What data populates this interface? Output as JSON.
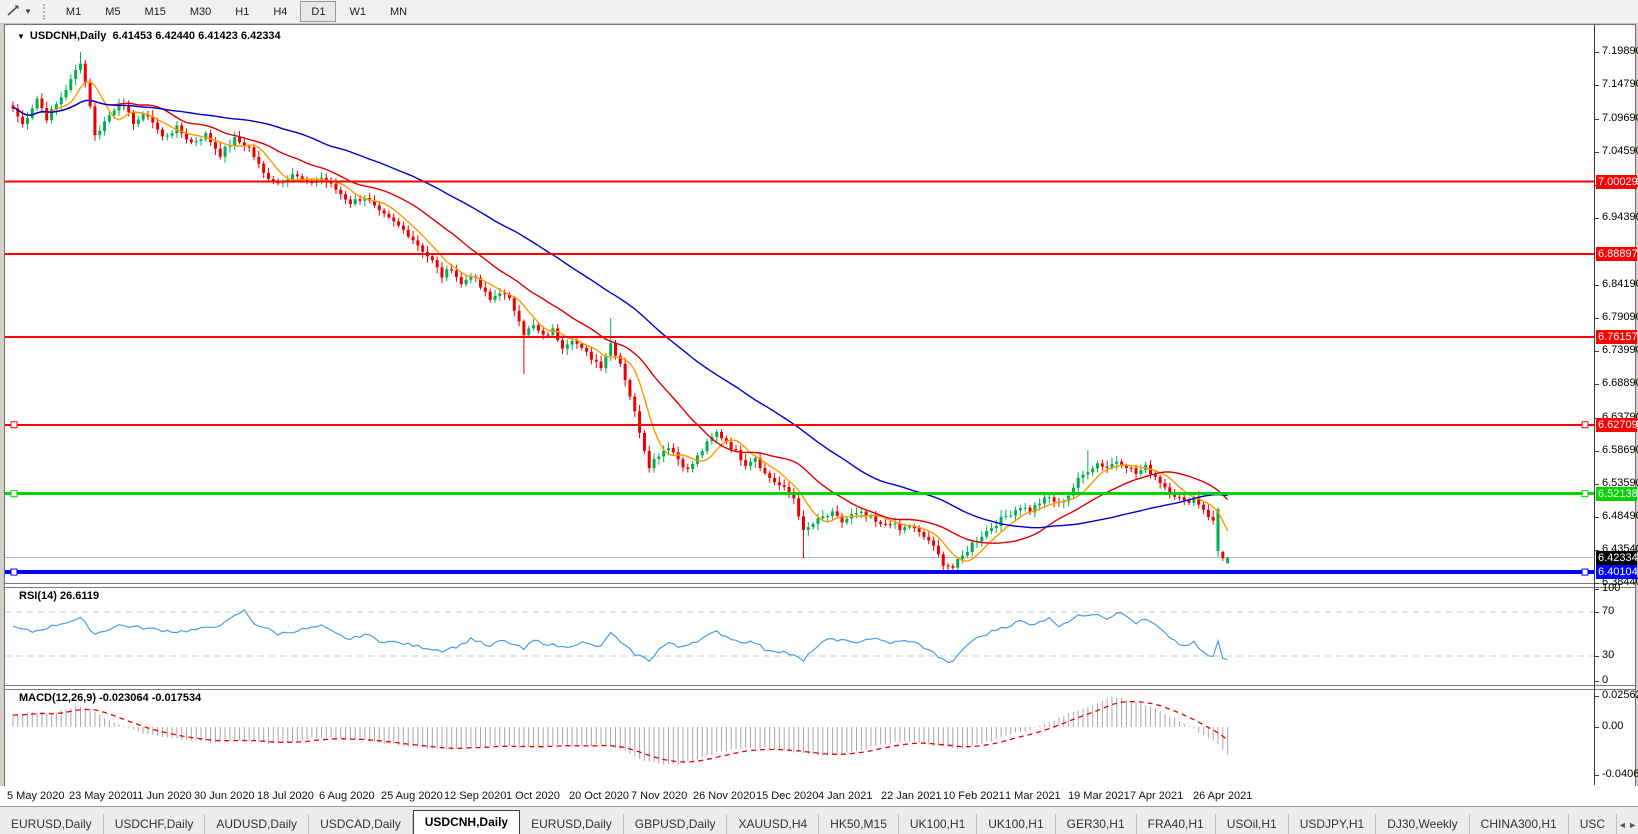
{
  "toolbar": {
    "tool_icon": "trendline-tool-icon",
    "timeframes": [
      "M1",
      "M5",
      "M15",
      "M30",
      "H1",
      "H4",
      "D1",
      "W1",
      "MN"
    ],
    "active_timeframe": "D1"
  },
  "chart": {
    "title": {
      "caret": "▼",
      "symbol": "USDCNH,Daily",
      "ohlc": "6.41453 6.42440 6.41423 6.42334"
    },
    "price_axis_ticks": [
      "7.19890",
      "7.14790",
      "7.09690",
      "7.04590",
      "6.99490",
      "6.94390",
      "6.84190",
      "6.79090",
      "6.73990",
      "6.68890",
      "6.63790",
      "6.58690",
      "6.53590",
      "6.48490",
      "6.43540",
      "6.38440"
    ],
    "date_axis": [
      "5 May 2020",
      "23 May 2020",
      "11 Jun 2020",
      "30 Jun 2020",
      "18 Jul 2020",
      "6 Aug 2020",
      "25 Aug 2020",
      "12 Sep 2020",
      "1 Oct 2020",
      "20 Oct 2020",
      "7 Nov 2020",
      "26 Nov 2020",
      "15 Dec 2020",
      "4 Jan 2021",
      "22 Jan 2021",
      "10 Feb 2021",
      "1 Mar 2021",
      "19 Mar 2021",
      "7 Apr 2021",
      "26 Apr 2021"
    ]
  },
  "indicators": {
    "rsi": {
      "name": "RSI(14)",
      "value": "26.6119",
      "axis": [
        "100",
        "70",
        "30",
        "0"
      ],
      "levels": [
        70,
        30
      ],
      "color": "#4a9ce8"
    },
    "macd": {
      "name": "MACD(12,26,9)",
      "values": "-0.023064 -0.017534",
      "axis": [
        "0.025623",
        "0.00",
        "-0.040687"
      ],
      "bar_color": "#a8a8a8",
      "signal_color": "#ee0000"
    }
  },
  "tabs": {
    "items": [
      "EURUSD,Daily",
      "USDCHF,Daily",
      "AUDUSD,Daily",
      "USDCAD,Daily",
      "USDCNH,Daily",
      "EURUSD,Daily",
      "GBPUSD,Daily",
      "XAUUSD,H4",
      "HK50,M15",
      "UK100,H1",
      "UK100,H1",
      "GER30,H1",
      "FRA40,H1",
      "USOil,H1",
      "USDJPY,H1",
      "DJ30,Weekly",
      "CHINA300,H1",
      "USC"
    ],
    "active_index": 4,
    "scroll_left": "◄",
    "scroll_right": "►"
  },
  "chart_data": {
    "type": "candlestick",
    "symbol": "USDCNH",
    "period": "Daily",
    "last_bar_ohlc": {
      "open": 6.41453,
      "high": 6.4244,
      "low": 6.41423,
      "close": 6.42334
    },
    "price_range_top": 7.2404,
    "price_range_bottom": 6.3843,
    "days": 253,
    "up_color": "#00b050",
    "down_color": "#ee0000",
    "close_anchors": [
      [
        0,
        7.112
      ],
      [
        2,
        7.088
      ],
      [
        5,
        7.128
      ],
      [
        7,
        7.098
      ],
      [
        9,
        7.118
      ],
      [
        12,
        7.155
      ],
      [
        14,
        7.185
      ],
      [
        16,
        7.118
      ],
      [
        17,
        7.07
      ],
      [
        19,
        7.092
      ],
      [
        22,
        7.122
      ],
      [
        25,
        7.092
      ],
      [
        28,
        7.103
      ],
      [
        31,
        7.068
      ],
      [
        34,
        7.082
      ],
      [
        37,
        7.06
      ],
      [
        40,
        7.072
      ],
      [
        43,
        7.042
      ],
      [
        46,
        7.065
      ],
      [
        49,
        7.052
      ],
      [
        52,
        7.012
      ],
      [
        55,
        6.998
      ],
      [
        58,
        7.012
      ],
      [
        61,
        6.996
      ],
      [
        64,
        7.006
      ],
      [
        67,
        6.988
      ],
      [
        70,
        6.968
      ],
      [
        73,
        6.977
      ],
      [
        76,
        6.952
      ],
      [
        79,
        6.937
      ],
      [
        82,
        6.92
      ],
      [
        85,
        6.895
      ],
      [
        87,
        6.878
      ],
      [
        89,
        6.855
      ],
      [
        91,
        6.868
      ],
      [
        93,
        6.842
      ],
      [
        95,
        6.858
      ],
      [
        97,
        6.838
      ],
      [
        99,
        6.818
      ],
      [
        101,
        6.832
      ],
      [
        103,
        6.818
      ],
      [
        105,
        6.79
      ],
      [
        106,
        6.768
      ],
      [
        108,
        6.778
      ],
      [
        110,
        6.762
      ],
      [
        112,
        6.772
      ],
      [
        114,
        6.748
      ],
      [
        116,
        6.76
      ],
      [
        118,
        6.742
      ],
      [
        120,
        6.73
      ],
      [
        122,
        6.718
      ],
      [
        124,
        6.752
      ],
      [
        126,
        6.722
      ],
      [
        127,
        6.698
      ],
      [
        128,
        6.672
      ],
      [
        129,
        6.645
      ],
      [
        130,
        6.618
      ],
      [
        131,
        6.59
      ],
      [
        132,
        6.565
      ],
      [
        134,
        6.582
      ],
      [
        136,
        6.595
      ],
      [
        138,
        6.575
      ],
      [
        140,
        6.557
      ],
      [
        142,
        6.578
      ],
      [
        144,
        6.598
      ],
      [
        146,
        6.615
      ],
      [
        148,
        6.602
      ],
      [
        150,
        6.585
      ],
      [
        152,
        6.568
      ],
      [
        154,
        6.578
      ],
      [
        156,
        6.552
      ],
      [
        158,
        6.54
      ],
      [
        160,
        6.528
      ],
      [
        162,
        6.515
      ],
      [
        163,
        6.49
      ],
      [
        164,
        6.462
      ],
      [
        166,
        6.475
      ],
      [
        168,
        6.485
      ],
      [
        170,
        6.49
      ],
      [
        172,
        6.478
      ],
      [
        174,
        6.488
      ],
      [
        176,
        6.49
      ],
      [
        178,
        6.482
      ],
      [
        180,
        6.472
      ],
      [
        182,
        6.478
      ],
      [
        184,
        6.465
      ],
      [
        186,
        6.472
      ],
      [
        188,
        6.46
      ],
      [
        190,
        6.45
      ],
      [
        191,
        6.438
      ],
      [
        193,
        6.415
      ],
      [
        195,
        6.408
      ],
      [
        197,
        6.425
      ],
      [
        199,
        6.445
      ],
      [
        201,
        6.458
      ],
      [
        203,
        6.47
      ],
      [
        205,
        6.482
      ],
      [
        207,
        6.492
      ],
      [
        209,
        6.502
      ],
      [
        211,
        6.495
      ],
      [
        213,
        6.508
      ],
      [
        215,
        6.515
      ],
      [
        217,
        6.505
      ],
      [
        219,
        6.52
      ],
      [
        221,
        6.542
      ],
      [
        223,
        6.558
      ],
      [
        225,
        6.568
      ],
      [
        227,
        6.562
      ],
      [
        229,
        6.572
      ],
      [
        231,
        6.565
      ],
      [
        233,
        6.552
      ],
      [
        235,
        6.562
      ],
      [
        237,
        6.548
      ],
      [
        239,
        6.532
      ],
      [
        241,
        6.52
      ],
      [
        243,
        6.508
      ],
      [
        245,
        6.515
      ],
      [
        247,
        6.498
      ],
      [
        249,
        6.478
      ],
      [
        250,
        6.4975
      ],
      [
        251,
        6.4225
      ],
      [
        252,
        6.42334
      ]
    ],
    "specials": [
      {
        "i": 14,
        "h": 7.1989
      },
      {
        "i": 106,
        "l": 6.705
      },
      {
        "i": 124,
        "h": 6.791
      },
      {
        "i": 164,
        "l": 6.422
      },
      {
        "i": 193,
        "l": 6.4015
      },
      {
        "i": 195,
        "l": 6.402
      },
      {
        "i": 223,
        "h": 6.588
      }
    ],
    "last_candles": [
      {
        "o": 6.4335,
        "h": 6.5005,
        "l": 6.4245,
        "c": 6.4975
      },
      {
        "o": 6.432,
        "h": 6.434,
        "l": 6.418,
        "c": 6.4225
      },
      {
        "o": 6.41453,
        "h": 6.4244,
        "l": 6.41423,
        "c": 6.42334
      }
    ],
    "moving_averages": [
      {
        "period": 6,
        "color": "#ff9900"
      },
      {
        "period": 20,
        "color": "#dd0000"
      },
      {
        "period": 50,
        "color": "#0000cc"
      }
    ],
    "hlines": [
      {
        "label": "7.00029",
        "price": 7.00029,
        "color": "#ff0000",
        "width": 2,
        "handles": false
      },
      {
        "label": "6.88897",
        "price": 6.88897,
        "color": "#ff0000",
        "width": 2,
        "handles": false
      },
      {
        "label": "6.76157",
        "price": 6.76157,
        "color": "#ff0000",
        "width": 2,
        "handles": false
      },
      {
        "label": "6.62709",
        "price": 6.62709,
        "color": "#ff0000",
        "width": 2,
        "handles": true
      },
      {
        "label": "6.52138",
        "price": 6.52138,
        "color": "#00d500",
        "width": 3,
        "handles": true
      },
      {
        "label": "6.40104",
        "price": 6.40104,
        "color": "#0000ff",
        "width": 4,
        "handles": true
      }
    ],
    "current_price": {
      "label": "6.42334",
      "price": 6.42334,
      "line_color": "#b8b8b8",
      "tag_bg": "#000000"
    },
    "rsi_series": [
      [
        0,
        56
      ],
      [
        4,
        52
      ],
      [
        8,
        57
      ],
      [
        12,
        62
      ],
      [
        14,
        64
      ],
      [
        17,
        50
      ],
      [
        22,
        58
      ],
      [
        28,
        55
      ],
      [
        34,
        52
      ],
      [
        40,
        55
      ],
      [
        44,
        60
      ],
      [
        47,
        69
      ],
      [
        48,
        71
      ],
      [
        50,
        60
      ],
      [
        55,
        50
      ],
      [
        60,
        54
      ],
      [
        64,
        57
      ],
      [
        67,
        50
      ],
      [
        70,
        45
      ],
      [
        73,
        50
      ],
      [
        76,
        44
      ],
      [
        80,
        42
      ],
      [
        85,
        38
      ],
      [
        89,
        35
      ],
      [
        93,
        40
      ],
      [
        95,
        46
      ],
      [
        97,
        42
      ],
      [
        99,
        38
      ],
      [
        101,
        44
      ],
      [
        103,
        42
      ],
      [
        106,
        36
      ],
      [
        108,
        44
      ],
      [
        110,
        42
      ],
      [
        114,
        38
      ],
      [
        118,
        42
      ],
      [
        122,
        38
      ],
      [
        124,
        52
      ],
      [
        126,
        42
      ],
      [
        129,
        32
      ],
      [
        132,
        26
      ],
      [
        134,
        36
      ],
      [
        136,
        42
      ],
      [
        138,
        38
      ],
      [
        142,
        44
      ],
      [
        146,
        52
      ],
      [
        150,
        44
      ],
      [
        154,
        42
      ],
      [
        156,
        36
      ],
      [
        160,
        34
      ],
      [
        163,
        28
      ],
      [
        164,
        25
      ],
      [
        166,
        36
      ],
      [
        168,
        42
      ],
      [
        170,
        46
      ],
      [
        174,
        42
      ],
      [
        178,
        46
      ],
      [
        182,
        42
      ],
      [
        186,
        44
      ],
      [
        190,
        36
      ],
      [
        193,
        26
      ],
      [
        195,
        24
      ],
      [
        197,
        36
      ],
      [
        199,
        44
      ],
      [
        201,
        48
      ],
      [
        203,
        52
      ],
      [
        205,
        56
      ],
      [
        207,
        58
      ],
      [
        209,
        62
      ],
      [
        211,
        58
      ],
      [
        213,
        62
      ],
      [
        215,
        64
      ],
      [
        217,
        58
      ],
      [
        219,
        62
      ],
      [
        221,
        66
      ],
      [
        223,
        68
      ],
      [
        225,
        69
      ],
      [
        227,
        64
      ],
      [
        229,
        70
      ],
      [
        231,
        66
      ],
      [
        233,
        60
      ],
      [
        235,
        63
      ],
      [
        237,
        58
      ],
      [
        239,
        50
      ],
      [
        241,
        44
      ],
      [
        243,
        38
      ],
      [
        245,
        42
      ],
      [
        247,
        33
      ],
      [
        248,
        30
      ],
      [
        249,
        29
      ],
      [
        250,
        43
      ],
      [
        251,
        28
      ],
      [
        252,
        26.6
      ]
    ],
    "macd_series": [
      [
        0,
        0.01
      ],
      [
        4,
        0.013
      ],
      [
        8,
        0.011
      ],
      [
        12,
        0.016
      ],
      [
        14,
        0.018
      ],
      [
        17,
        0.012
      ],
      [
        20,
        0.006
      ],
      [
        23,
        0
      ],
      [
        26,
        -0.004
      ],
      [
        30,
        -0.008
      ],
      [
        34,
        -0.01
      ],
      [
        38,
        -0.012
      ],
      [
        42,
        -0.013
      ],
      [
        46,
        -0.011
      ],
      [
        50,
        -0.012
      ],
      [
        54,
        -0.014
      ],
      [
        58,
        -0.012
      ],
      [
        62,
        -0.01
      ],
      [
        66,
        -0.009
      ],
      [
        70,
        -0.011
      ],
      [
        74,
        -0.012
      ],
      [
        78,
        -0.014
      ],
      [
        82,
        -0.016
      ],
      [
        86,
        -0.018
      ],
      [
        90,
        -0.019
      ],
      [
        94,
        -0.017
      ],
      [
        98,
        -0.016
      ],
      [
        102,
        -0.015
      ],
      [
        106,
        -0.017
      ],
      [
        110,
        -0.016
      ],
      [
        114,
        -0.015
      ],
      [
        118,
        -0.016
      ],
      [
        122,
        -0.015
      ],
      [
        126,
        -0.018
      ],
      [
        129,
        -0.024
      ],
      [
        132,
        -0.03
      ],
      [
        135,
        -0.032
      ],
      [
        138,
        -0.031
      ],
      [
        141,
        -0.028
      ],
      [
        144,
        -0.024
      ],
      [
        147,
        -0.021
      ],
      [
        150,
        -0.018
      ],
      [
        153,
        -0.017
      ],
      [
        156,
        -0.018
      ],
      [
        159,
        -0.019
      ],
      [
        162,
        -0.021
      ],
      [
        165,
        -0.023
      ],
      [
        168,
        -0.024
      ],
      [
        171,
        -0.023
      ],
      [
        174,
        -0.021
      ],
      [
        177,
        -0.018
      ],
      [
        180,
        -0.015
      ],
      [
        183,
        -0.013
      ],
      [
        186,
        -0.012
      ],
      [
        189,
        -0.013
      ],
      [
        192,
        -0.016
      ],
      [
        195,
        -0.018
      ],
      [
        198,
        -0.017
      ],
      [
        201,
        -0.014
      ],
      [
        204,
        -0.01
      ],
      [
        207,
        -0.006
      ],
      [
        210,
        -0.003
      ],
      [
        213,
        0.001
      ],
      [
        216,
        0.006
      ],
      [
        219,
        0.011
      ],
      [
        222,
        0.016
      ],
      [
        225,
        0.02
      ],
      [
        228,
        0.0256
      ],
      [
        230,
        0.024
      ],
      [
        232,
        0.022
      ],
      [
        234,
        0.02
      ],
      [
        236,
        0.017
      ],
      [
        238,
        0.013
      ],
      [
        240,
        0.009
      ],
      [
        242,
        0.005
      ],
      [
        244,
        0.001
      ],
      [
        246,
        -0.004
      ],
      [
        248,
        -0.009
      ],
      [
        250,
        -0.014
      ],
      [
        251,
        -0.019
      ],
      [
        252,
        -0.0231
      ]
    ]
  }
}
